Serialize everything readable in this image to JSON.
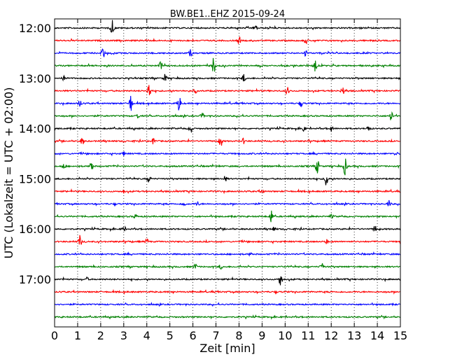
{
  "chart_data": {
    "type": "line",
    "title": "BW.BE1..EHZ 2015-09-24",
    "xlabel": "Zeit  [min]",
    "ylabel": "UTC (Lokalzeit = UTC + 02:00)",
    "xlim": [
      0,
      15
    ],
    "x_ticks": [
      "0",
      "1",
      "2",
      "3",
      "4",
      "5",
      "6",
      "7",
      "8",
      "9",
      "10",
      "11",
      "12",
      "13",
      "14",
      "15"
    ],
    "y_tick_labels": [
      "12:00",
      "13:00",
      "14:00",
      "15:00",
      "16:00",
      "17:00"
    ],
    "y_tick_every_n_traces": 4,
    "grid": {
      "vertical_dotted": true
    },
    "trace_color_cycle": [
      "#000000",
      "#ff0000",
      "#0000ff",
      "#008000"
    ],
    "traces": [
      {
        "time": "12:00",
        "events": [
          [
            2.5,
            1.0
          ],
          [
            8.7,
            0.45
          ]
        ]
      },
      {
        "time": "12:15",
        "events": [
          [
            8.0,
            0.4
          ],
          [
            10.9,
            0.35
          ],
          [
            4.0,
            0.2
          ]
        ]
      },
      {
        "time": "12:30",
        "events": [
          [
            2.1,
            0.7
          ],
          [
            5.9,
            0.4
          ],
          [
            10.9,
            0.4
          ]
        ]
      },
      {
        "time": "12:45",
        "events": [
          [
            6.9,
            1.0
          ],
          [
            11.3,
            1.0
          ],
          [
            4.6,
            0.45
          ]
        ]
      },
      {
        "time": "13:00",
        "events": [
          [
            4.8,
            0.45
          ],
          [
            8.2,
            0.45
          ],
          [
            0.4,
            0.2
          ]
        ]
      },
      {
        "time": "13:15",
        "events": [
          [
            4.1,
            1.0
          ],
          [
            10.1,
            0.4
          ],
          [
            12.5,
            0.5
          ],
          [
            6.1,
            0.25
          ]
        ]
      },
      {
        "time": "13:30",
        "events": [
          [
            3.3,
            1.0
          ],
          [
            5.4,
            1.0
          ],
          [
            1.1,
            0.4
          ],
          [
            10.7,
            0.3
          ]
        ]
      },
      {
        "time": "13:45",
        "events": [
          [
            14.6,
            0.75
          ],
          [
            6.4,
            0.3
          ],
          [
            3.6,
            0.3
          ]
        ]
      },
      {
        "time": "14:00",
        "events": [
          [
            5.9,
            0.6
          ],
          [
            10.8,
            0.35
          ],
          [
            13.6,
            0.35
          ],
          [
            12.0,
            0.3
          ]
        ]
      },
      {
        "time": "14:15",
        "events": [
          [
            7.2,
            0.7
          ],
          [
            1.2,
            0.45
          ],
          [
            4.3,
            0.45
          ],
          [
            8.2,
            0.3
          ]
        ]
      },
      {
        "time": "14:30",
        "events": [
          [
            14.8,
            0.25
          ],
          [
            3.0,
            0.2
          ]
        ]
      },
      {
        "time": "14:45",
        "events": [
          [
            1.6,
            0.75
          ],
          [
            11.4,
            0.8
          ],
          [
            12.6,
            1.0
          ],
          [
            0.4,
            0.3
          ]
        ]
      },
      {
        "time": "15:00",
        "events": [
          [
            11.8,
            1.0
          ],
          [
            4.1,
            0.4
          ],
          [
            7.4,
            0.3
          ]
        ]
      },
      {
        "time": "15:15",
        "events": [
          [
            9.0,
            0.25
          ],
          [
            3.0,
            0.2
          ]
        ]
      },
      {
        "time": "15:30",
        "events": [
          [
            14.5,
            0.4
          ],
          [
            5.6,
            0.3
          ],
          [
            6.2,
            0.25
          ]
        ]
      },
      {
        "time": "15:45",
        "events": [
          [
            9.4,
            0.8
          ],
          [
            12.0,
            0.2
          ],
          [
            3.5,
            0.25
          ]
        ]
      },
      {
        "time": "16:00",
        "events": [
          [
            13.9,
            0.45
          ],
          [
            3.0,
            0.3
          ],
          [
            9.5,
            0.3
          ]
        ]
      },
      {
        "time": "16:15",
        "events": [
          [
            1.1,
            0.7
          ],
          [
            4.0,
            0.3
          ],
          [
            11.8,
            0.25
          ]
        ]
      },
      {
        "time": "16:30",
        "events": [
          [
            8.5,
            0.2
          ]
        ]
      },
      {
        "time": "16:45",
        "events": [
          [
            6.1,
            0.35
          ],
          [
            11.6,
            0.5
          ],
          [
            7.2,
            0.25
          ]
        ]
      },
      {
        "time": "17:00",
        "events": [
          [
            9.8,
            0.9
          ],
          [
            1.4,
            0.2
          ]
        ]
      },
      {
        "time": "17:15",
        "events": []
      },
      {
        "time": "17:30",
        "events": []
      },
      {
        "time": "17:45",
        "events": []
      }
    ]
  }
}
